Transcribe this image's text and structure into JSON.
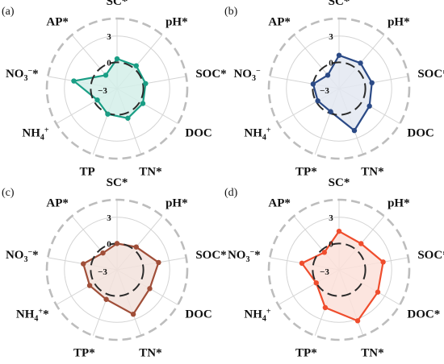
{
  "chart_data": [
    {
      "type": "radar",
      "panel_label": "(a)",
      "axes": [
        "SC*",
        "pH*",
        "SOC*",
        "DOC",
        "TN*",
        "TP",
        "NH4+",
        "NO3−*",
        "AP*"
      ],
      "ticks": [
        "3",
        "0",
        "−3"
      ],
      "rlim": [
        -3,
        5
      ],
      "values": [
        0.4,
        0.4,
        0.3,
        0.4,
        0.6,
        0.1,
        -0.4,
        2.0,
        -1.0
      ],
      "color": "#1a9e85",
      "fill": "#d3efe9"
    },
    {
      "type": "radar",
      "panel_label": "(b)",
      "axes": [
        "SC*",
        "pH*",
        "SOC*",
        "DOC",
        "TN*",
        "TP*",
        "NH4+",
        "NO3−",
        "AP*"
      ],
      "ticks": [
        "3",
        "0",
        "−3"
      ],
      "rlim": [
        -3,
        5
      ],
      "values": [
        0.8,
        0.8,
        0.8,
        1.0,
        2.1,
        -0.2,
        -0.2,
        0.0,
        -1.0
      ],
      "color": "#2b4a86",
      "fill": "#e3e8f1"
    },
    {
      "type": "radar",
      "panel_label": "(c)",
      "axes": [
        "SC*",
        "pH*",
        "SOC*",
        "DOC",
        "TN*",
        "TP*",
        "NH4+*",
        "NO3−*",
        "AP*"
      ],
      "ticks": [
        "3",
        "0",
        "−3"
      ],
      "rlim": [
        -3,
        5
      ],
      "values": [
        0.0,
        0.4,
        1.8,
        1.3,
        2.4,
        0.6,
        0.6,
        0.9,
        -0.5
      ],
      "color": "#a04e38",
      "fill": "#f2e2dc"
    },
    {
      "type": "radar",
      "panel_label": "(d)",
      "axes": [
        "SC*",
        "pH*",
        "SOC*",
        "DOC*",
        "TN*",
        "TP*",
        "NH4+",
        "NO3−*",
        "AP*"
      ],
      "ticks": [
        "3",
        "0",
        "−3"
      ],
      "rlim": [
        -3,
        5
      ],
      "values": [
        1.4,
        0.9,
        2.1,
        2.1,
        3.2,
        1.6,
        0.0,
        1.3,
        -0.4
      ],
      "color": "#ef4d2d",
      "fill": "#fce0d9"
    }
  ]
}
